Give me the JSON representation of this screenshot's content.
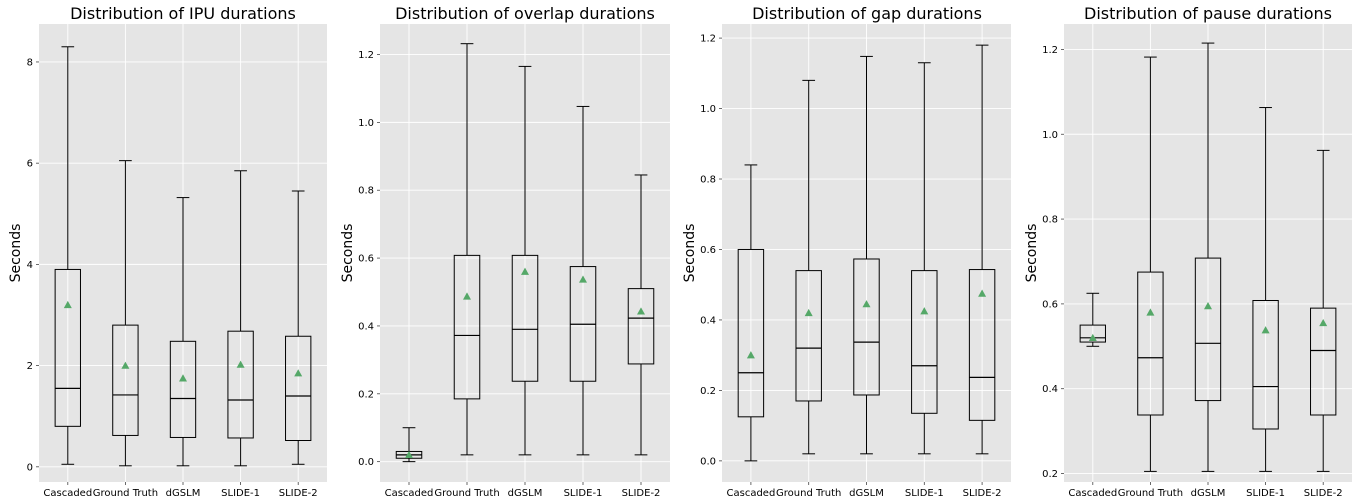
{
  "chart_data": [
    {
      "type": "box",
      "title": "Distribution of IPU durations",
      "ylabel": "Seconds",
      "categories": [
        "Cascaded",
        "Ground Truth",
        "dGSLM",
        "SLIDE-1",
        "SLIDE-2"
      ],
      "ylim": [
        -0.3,
        8.75
      ],
      "yticks": [
        0,
        2,
        4,
        6,
        8
      ],
      "ytick_labels": [
        "0",
        "2",
        "4",
        "6",
        "8"
      ],
      "grid": true,
      "boxes": [
        {
          "whislo": 0.05,
          "q1": 0.8,
          "med": 1.55,
          "q3": 3.9,
          "whishi": 8.3,
          "mean": 3.2
        },
        {
          "whislo": 0.02,
          "q1": 0.62,
          "med": 1.42,
          "q3": 2.8,
          "whishi": 6.05,
          "mean": 2.0
        },
        {
          "whislo": 0.02,
          "q1": 0.58,
          "med": 1.35,
          "q3": 2.48,
          "whishi": 5.32,
          "mean": 1.75
        },
        {
          "whislo": 0.02,
          "q1": 0.57,
          "med": 1.32,
          "q3": 2.68,
          "whishi": 5.85,
          "mean": 2.02
        },
        {
          "whislo": 0.05,
          "q1": 0.52,
          "med": 1.4,
          "q3": 2.58,
          "whishi": 5.45,
          "mean": 1.85
        }
      ]
    },
    {
      "type": "box",
      "title": "Distribution of overlap durations",
      "ylabel": "Seconds",
      "categories": [
        "Cascaded",
        "Ground Truth",
        "dGSLM",
        "SLIDE-1",
        "SLIDE-2"
      ],
      "ylim": [
        -0.06,
        1.29
      ],
      "yticks": [
        0.0,
        0.2,
        0.4,
        0.6,
        0.8,
        1.0,
        1.2
      ],
      "ytick_labels": [
        "0.0",
        "0.2",
        "0.4",
        "0.6",
        "0.8",
        "1.0",
        "1.2"
      ],
      "grid": true,
      "boxes": [
        {
          "whislo": 0.0,
          "q1": 0.01,
          "med": 0.02,
          "q3": 0.03,
          "whishi": 0.1,
          "mean": 0.02
        },
        {
          "whislo": 0.02,
          "q1": 0.185,
          "med": 0.372,
          "q3": 0.608,
          "whishi": 1.232,
          "mean": 0.487
        },
        {
          "whislo": 0.02,
          "q1": 0.237,
          "med": 0.39,
          "q3": 0.608,
          "whishi": 1.165,
          "mean": 0.56
        },
        {
          "whislo": 0.02,
          "q1": 0.237,
          "med": 0.405,
          "q3": 0.575,
          "whishi": 1.047,
          "mean": 0.537
        },
        {
          "whislo": 0.02,
          "q1": 0.288,
          "med": 0.423,
          "q3": 0.51,
          "whishi": 0.845,
          "mean": 0.443
        }
      ]
    },
    {
      "type": "box",
      "title": "Distribution of gap durations",
      "ylabel": "Seconds",
      "categories": [
        "Cascaded",
        "Ground Truth",
        "dGSLM",
        "SLIDE-1",
        "SLIDE-2"
      ],
      "ylim": [
        -0.06,
        1.24
      ],
      "yticks": [
        0.0,
        0.2,
        0.4,
        0.6,
        0.8,
        1.0,
        1.2
      ],
      "ytick_labels": [
        "0.0",
        "0.2",
        "0.4",
        "0.6",
        "0.8",
        "1.0",
        "1.2"
      ],
      "grid": true,
      "boxes": [
        {
          "whislo": 0.0,
          "q1": 0.125,
          "med": 0.25,
          "q3": 0.6,
          "whishi": 0.84,
          "mean": 0.3
        },
        {
          "whislo": 0.02,
          "q1": 0.17,
          "med": 0.32,
          "q3": 0.54,
          "whishi": 1.08,
          "mean": 0.42
        },
        {
          "whislo": 0.02,
          "q1": 0.187,
          "med": 0.337,
          "q3": 0.573,
          "whishi": 1.148,
          "mean": 0.445
        },
        {
          "whislo": 0.02,
          "q1": 0.135,
          "med": 0.27,
          "q3": 0.54,
          "whishi": 1.13,
          "mean": 0.425
        },
        {
          "whislo": 0.02,
          "q1": 0.115,
          "med": 0.237,
          "q3": 0.543,
          "whishi": 1.18,
          "mean": 0.475
        }
      ]
    },
    {
      "type": "box",
      "title": "Distribution of pause durations",
      "ylabel": "Seconds",
      "categories": [
        "Cascaded",
        "Ground Truth",
        "dGSLM",
        "SLIDE-1",
        "SLIDE-2"
      ],
      "ylim": [
        0.18,
        1.26
      ],
      "yticks": [
        0.2,
        0.4,
        0.6,
        0.8,
        1.0,
        1.2
      ],
      "ytick_labels": [
        "0.2",
        "0.4",
        "0.6",
        "0.8",
        "1.0",
        "1.2"
      ],
      "grid": true,
      "boxes": [
        {
          "whislo": 0.5,
          "q1": 0.51,
          "med": 0.52,
          "q3": 0.55,
          "whishi": 0.625,
          "mean": 0.52
        },
        {
          "whislo": 0.205,
          "q1": 0.338,
          "med": 0.473,
          "q3": 0.675,
          "whishi": 1.182,
          "mean": 0.58
        },
        {
          "whislo": 0.205,
          "q1": 0.372,
          "med": 0.507,
          "q3": 0.708,
          "whishi": 1.215,
          "mean": 0.595
        },
        {
          "whislo": 0.205,
          "q1": 0.305,
          "med": 0.405,
          "q3": 0.608,
          "whishi": 1.063,
          "mean": 0.538
        },
        {
          "whislo": 0.205,
          "q1": 0.338,
          "med": 0.49,
          "q3": 0.59,
          "whishi": 0.962,
          "mean": 0.555
        }
      ]
    }
  ],
  "colors": {
    "plot_background": "#e5e5e5",
    "grid": "#ffffff",
    "box_line": "#000000",
    "mean_marker": "#55a868"
  }
}
